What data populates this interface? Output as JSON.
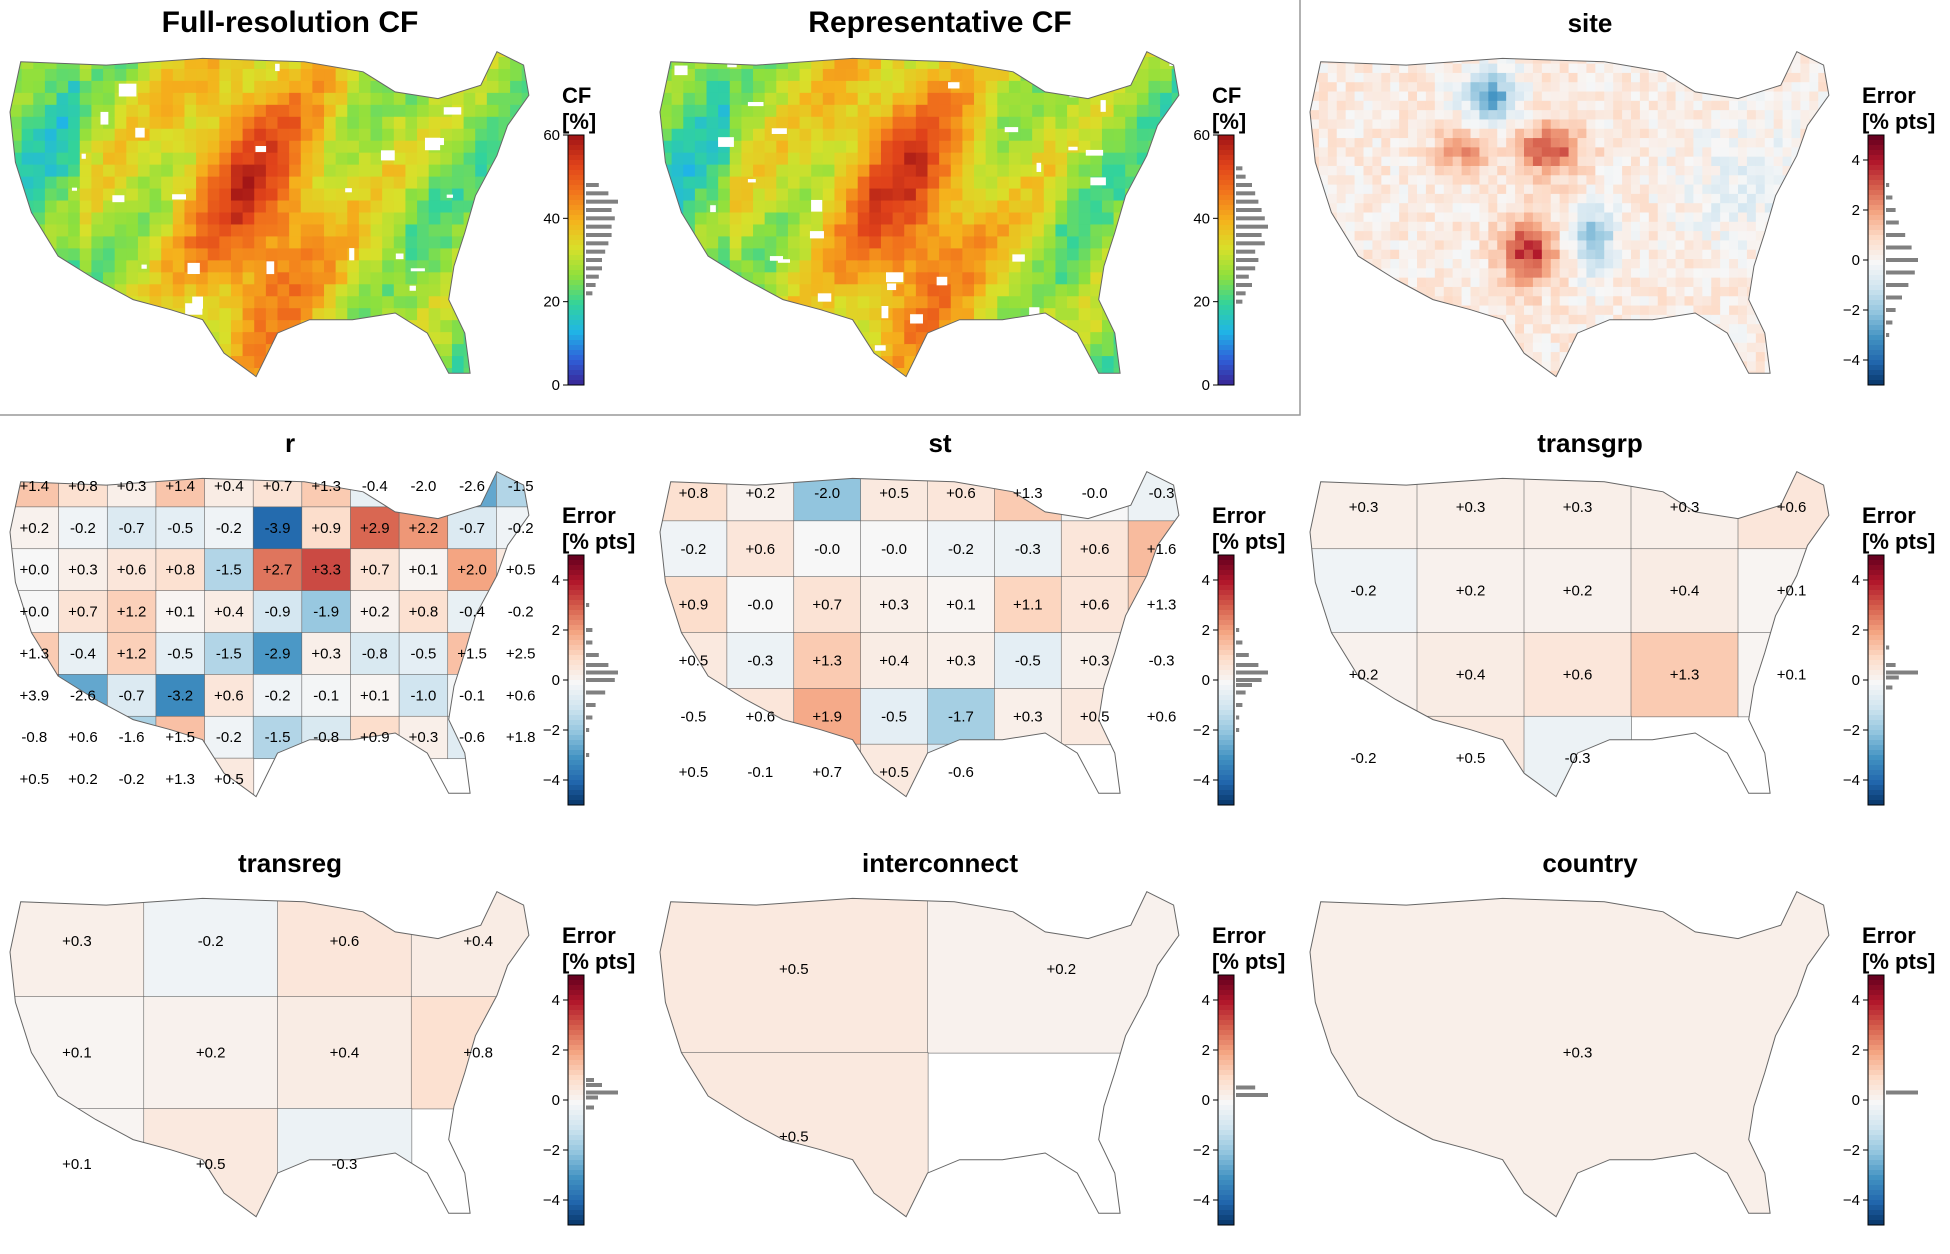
{
  "figure": {
    "cf_colors": [
      "#3a1f8e",
      "#2f5fd8",
      "#20b5e6",
      "#32d39b",
      "#8ee03d",
      "#d8e02a",
      "#f5b21c",
      "#f2761c",
      "#e0421a",
      "#a31616"
    ],
    "err_colors": [
      "#053061",
      "#2166ac",
      "#4393c3",
      "#92c5de",
      "#d1e5f0",
      "#f7f7f7",
      "#fddbc7",
      "#f4a582",
      "#d6604d",
      "#b2182b",
      "#67001f"
    ],
    "border_color": "#666666",
    "hist_color": "#808080"
  },
  "chart_data": [
    {
      "type": "heatmap",
      "title": "Full-resolution CF",
      "colorbar": {
        "title_lines": [
          "CF",
          "[%]"
        ],
        "range": [
          0,
          60
        ],
        "ticks": [
          "0",
          "20",
          "40",
          "60"
        ],
        "scheme": "cf"
      },
      "histogram": {
        "bins": [
          22,
          24,
          26,
          28,
          30,
          32,
          34,
          36,
          38,
          40,
          42,
          44,
          46,
          48
        ],
        "counts": [
          2,
          3,
          4,
          5,
          5,
          6,
          7,
          8,
          8,
          9,
          8,
          10,
          7,
          4
        ]
      }
    },
    {
      "type": "heatmap",
      "title": "Representative CF",
      "colorbar": {
        "title_lines": [
          "CF",
          "[%]"
        ],
        "range": [
          0,
          60
        ],
        "ticks": [
          "0",
          "20",
          "40",
          "60"
        ],
        "scheme": "cf"
      },
      "histogram": {
        "bins": [
          20,
          22,
          24,
          26,
          28,
          30,
          32,
          34,
          36,
          38,
          40,
          42,
          44,
          46,
          48,
          50,
          52
        ],
        "counts": [
          2,
          3,
          5,
          4,
          6,
          7,
          6,
          9,
          8,
          10,
          9,
          8,
          7,
          6,
          5,
          3,
          2
        ]
      }
    },
    {
      "type": "heatmap",
      "title": "site",
      "colorbar": {
        "title_lines": [
          "Error",
          "[% pts]"
        ],
        "range": [
          -5,
          5
        ],
        "ticks": [
          "4",
          "2",
          "0",
          "−2",
          "−4"
        ],
        "scheme": "error"
      },
      "histogram": {
        "bins": [
          -3,
          -2.5,
          -2,
          -1.5,
          -1,
          -0.5,
          0,
          0.5,
          1,
          1.5,
          2,
          2.5,
          3
        ],
        "counts": [
          1,
          2,
          3,
          5,
          7,
          9,
          10,
          8,
          6,
          4,
          3,
          2,
          1
        ]
      }
    },
    {
      "type": "heatmap",
      "title": "r",
      "colorbar": {
        "title_lines": [
          "Error",
          "[% pts]"
        ],
        "range": [
          -5,
          5
        ],
        "ticks": [
          "4",
          "2",
          "0",
          "−2",
          "−4"
        ],
        "scheme": "error"
      },
      "histogram": {
        "bins": [
          -3,
          -2,
          -1.5,
          -1,
          -0.5,
          0,
          0.3,
          0.6,
          1,
          1.5,
          2,
          3
        ],
        "counts": [
          1,
          1,
          2,
          3,
          6,
          9,
          10,
          7,
          4,
          2,
          2,
          1
        ]
      },
      "regions": [
        {
          "label": "+1.4",
          "value": 1.4
        },
        {
          "label": "+0.8",
          "value": 0.8
        },
        {
          "label": "+0.3",
          "value": 0.3
        },
        {
          "label": "+1.4",
          "value": 1.4
        },
        {
          "label": "+0.4",
          "value": 0.4
        },
        {
          "label": "+0.7",
          "value": 0.7
        },
        {
          "label": "+1.3",
          "value": 1.3
        },
        {
          "label": "-0.4",
          "value": -0.4
        },
        {
          "label": "-2.0",
          "value": -2.0
        },
        {
          "label": "-2.6",
          "value": -2.6
        },
        {
          "label": "-1.5",
          "value": -1.5
        },
        {
          "label": "+0.2",
          "value": 0.2
        },
        {
          "label": "-0.2",
          "value": -0.2
        },
        {
          "label": "-0.7",
          "value": -0.7
        },
        {
          "label": "-0.5",
          "value": -0.5
        },
        {
          "label": "-0.2",
          "value": -0.2
        },
        {
          "label": "-3.9",
          "value": -3.9
        },
        {
          "label": "+0.9",
          "value": 0.9
        },
        {
          "label": "+2.9",
          "value": 2.9
        },
        {
          "label": "+2.2",
          "value": 2.2
        },
        {
          "label": "-0.7",
          "value": -0.7
        },
        {
          "label": "-0.2",
          "value": -0.2
        },
        {
          "label": "+0.0",
          "value": 0.0
        },
        {
          "label": "+0.3",
          "value": 0.3
        },
        {
          "label": "+0.6",
          "value": 0.6
        },
        {
          "label": "+0.8",
          "value": 0.8
        },
        {
          "label": "-1.5",
          "value": -1.5
        },
        {
          "label": "+2.7",
          "value": 2.7
        },
        {
          "label": "+3.3",
          "value": 3.3
        },
        {
          "label": "+0.7",
          "value": 0.7
        },
        {
          "label": "+0.1",
          "value": 0.1
        },
        {
          "label": "+2.0",
          "value": 2.0
        },
        {
          "label": "+0.5",
          "value": 0.5
        },
        {
          "label": "+0.0",
          "value": 0.0
        },
        {
          "label": "+0.7",
          "value": 0.7
        },
        {
          "label": "+1.2",
          "value": 1.2
        },
        {
          "label": "+0.1",
          "value": 0.1
        },
        {
          "label": "+0.4",
          "value": 0.4
        },
        {
          "label": "-0.9",
          "value": -0.9
        },
        {
          "label": "-1.9",
          "value": -1.9
        },
        {
          "label": "+0.2",
          "value": 0.2
        },
        {
          "label": "+0.8",
          "value": 0.8
        },
        {
          "label": "-0.4",
          "value": -0.4
        },
        {
          "label": "-0.2",
          "value": -0.2
        },
        {
          "label": "+1.3",
          "value": 1.3
        },
        {
          "label": "-0.4",
          "value": -0.4
        },
        {
          "label": "+1.2",
          "value": 1.2
        },
        {
          "label": "-0.5",
          "value": -0.5
        },
        {
          "label": "-1.5",
          "value": -1.5
        },
        {
          "label": "-2.9",
          "value": -2.9
        },
        {
          "label": "+0.3",
          "value": 0.3
        },
        {
          "label": "-0.8",
          "value": -0.8
        },
        {
          "label": "-0.5",
          "value": -0.5
        },
        {
          "label": "+1.5",
          "value": 1.5
        },
        {
          "label": "+2.5",
          "value": 2.5
        },
        {
          "label": "+3.9",
          "value": 3.9
        },
        {
          "label": "-2.6",
          "value": -2.6
        },
        {
          "label": "-0.7",
          "value": -0.7
        },
        {
          "label": "-3.2",
          "value": -3.2
        },
        {
          "label": "+0.6",
          "value": 0.6
        },
        {
          "label": "-0.2",
          "value": -0.2
        },
        {
          "label": "-0.1",
          "value": -0.1
        },
        {
          "label": "+0.1",
          "value": 0.1
        },
        {
          "label": "-1.0",
          "value": -1.0
        },
        {
          "label": "-0.1",
          "value": -0.1
        },
        {
          "label": "+0.6",
          "value": 0.6
        },
        {
          "label": "-0.8",
          "value": -0.8
        },
        {
          "label": "+0.6",
          "value": 0.6
        },
        {
          "label": "-1.6",
          "value": -1.6
        },
        {
          "label": "+1.5",
          "value": 1.5
        },
        {
          "label": "-0.2",
          "value": -0.2
        },
        {
          "label": "-1.5",
          "value": -1.5
        },
        {
          "label": "-0.8",
          "value": -0.8
        },
        {
          "label": "+0.9",
          "value": 0.9
        },
        {
          "label": "+0.3",
          "value": 0.3
        },
        {
          "label": "-0.6",
          "value": -0.6
        },
        {
          "label": "+1.8",
          "value": 1.8
        },
        {
          "label": "+0.5",
          "value": 0.5
        },
        {
          "label": "+0.2",
          "value": 0.2
        },
        {
          "label": "-0.2",
          "value": -0.2
        },
        {
          "label": "+1.3",
          "value": 1.3
        },
        {
          "label": "+0.5",
          "value": 0.5
        }
      ]
    },
    {
      "type": "heatmap",
      "title": "st",
      "colorbar": {
        "title_lines": [
          "Error",
          "[% pts]"
        ],
        "range": [
          -5,
          5
        ],
        "ticks": [
          "4",
          "2",
          "0",
          "−2",
          "−4"
        ],
        "scheme": "error"
      },
      "histogram": {
        "bins": [
          -2,
          -1.5,
          -1,
          -0.5,
          -0.2,
          0,
          0.3,
          0.6,
          1,
          1.5,
          2
        ],
        "counts": [
          1,
          1,
          2,
          3,
          5,
          8,
          10,
          7,
          4,
          2,
          1
        ]
      },
      "regions": [
        {
          "label": "+0.8",
          "value": 0.8
        },
        {
          "label": "+0.2",
          "value": 0.2
        },
        {
          "label": "-2.0",
          "value": -2.0
        },
        {
          "label": "+0.5",
          "value": 0.5
        },
        {
          "label": "+0.6",
          "value": 0.6
        },
        {
          "label": "+1.3",
          "value": 1.3
        },
        {
          "label": "-0.0",
          "value": 0.0
        },
        {
          "label": "-0.3",
          "value": -0.3
        },
        {
          "label": "-0.2",
          "value": -0.2
        },
        {
          "label": "+0.6",
          "value": 0.6
        },
        {
          "label": "-0.0",
          "value": 0.0
        },
        {
          "label": "-0.0",
          "value": 0.0
        },
        {
          "label": "-0.2",
          "value": -0.2
        },
        {
          "label": "-0.3",
          "value": -0.3
        },
        {
          "label": "+0.6",
          "value": 0.6
        },
        {
          "label": "+1.6",
          "value": 1.6
        },
        {
          "label": "+0.9",
          "value": 0.9
        },
        {
          "label": "-0.0",
          "value": 0.0
        },
        {
          "label": "+0.7",
          "value": 0.7
        },
        {
          "label": "+0.3",
          "value": 0.3
        },
        {
          "label": "+0.1",
          "value": 0.1
        },
        {
          "label": "+1.1",
          "value": 1.1
        },
        {
          "label": "+0.6",
          "value": 0.6
        },
        {
          "label": "+1.3",
          "value": 1.3
        },
        {
          "label": "+0.5",
          "value": 0.5
        },
        {
          "label": "-0.3",
          "value": -0.3
        },
        {
          "label": "+1.3",
          "value": 1.3
        },
        {
          "label": "+0.4",
          "value": 0.4
        },
        {
          "label": "+0.3",
          "value": 0.3
        },
        {
          "label": "-0.5",
          "value": -0.5
        },
        {
          "label": "+0.3",
          "value": 0.3
        },
        {
          "label": "-0.3",
          "value": -0.3
        },
        {
          "label": "-0.5",
          "value": -0.5
        },
        {
          "label": "+0.6",
          "value": 0.6
        },
        {
          "label": "+1.9",
          "value": 1.9
        },
        {
          "label": "-0.5",
          "value": -0.5
        },
        {
          "label": "-1.7",
          "value": -1.7
        },
        {
          "label": "+0.3",
          "value": 0.3
        },
        {
          "label": "+0.5",
          "value": 0.5
        },
        {
          "label": "+0.6",
          "value": 0.6
        },
        {
          "label": "+0.5",
          "value": 0.5
        },
        {
          "label": "-0.1",
          "value": -0.1
        },
        {
          "label": "+0.7",
          "value": 0.7
        },
        {
          "label": "+0.5",
          "value": 0.5
        },
        {
          "label": "-0.6",
          "value": -0.6
        }
      ]
    },
    {
      "type": "heatmap",
      "title": "transgrp",
      "colorbar": {
        "title_lines": [
          "Error",
          "[% pts]"
        ],
        "range": [
          -5,
          5
        ],
        "ticks": [
          "4",
          "2",
          "0",
          "−2",
          "−4"
        ],
        "scheme": "error"
      },
      "histogram": {
        "bins": [
          -0.3,
          0.1,
          0.3,
          0.6,
          1.3
        ],
        "counts": [
          2,
          4,
          10,
          3,
          1
        ]
      },
      "regions": [
        {
          "label": "+0.3",
          "value": 0.3
        },
        {
          "label": "+0.3",
          "value": 0.3
        },
        {
          "label": "+0.3",
          "value": 0.3
        },
        {
          "label": "+0.3",
          "value": 0.3
        },
        {
          "label": "+0.6",
          "value": 0.6
        },
        {
          "label": "-0.2",
          "value": -0.2
        },
        {
          "label": "+0.2",
          "value": 0.2
        },
        {
          "label": "+0.2",
          "value": 0.2
        },
        {
          "label": "+0.4",
          "value": 0.4
        },
        {
          "label": "+0.1",
          "value": 0.1
        },
        {
          "label": "+0.2",
          "value": 0.2
        },
        {
          "label": "+0.4",
          "value": 0.4
        },
        {
          "label": "+0.6",
          "value": 0.6
        },
        {
          "label": "+1.3",
          "value": 1.3
        },
        {
          "label": "+0.1",
          "value": 0.1
        },
        {
          "label": "-0.2",
          "value": -0.2
        },
        {
          "label": "+0.5",
          "value": 0.5
        },
        {
          "label": "-0.3",
          "value": -0.3
        }
      ]
    },
    {
      "type": "heatmap",
      "title": "transreg",
      "colorbar": {
        "title_lines": [
          "Error",
          "[% pts]"
        ],
        "range": [
          -5,
          5
        ],
        "ticks": [
          "4",
          "2",
          "0",
          "−2",
          "−4"
        ],
        "scheme": "error"
      },
      "histogram": {
        "bins": [
          -0.3,
          0.1,
          0.3,
          0.6,
          0.8
        ],
        "counts": [
          2,
          3,
          8,
          4,
          2
        ]
      },
      "regions": [
        {
          "label": "+0.3",
          "value": 0.3
        },
        {
          "label": "-0.2",
          "value": -0.2
        },
        {
          "label": "+0.6",
          "value": 0.6
        },
        {
          "label": "+0.4",
          "value": 0.4
        },
        {
          "label": "+0.1",
          "value": 0.1
        },
        {
          "label": "+0.2",
          "value": 0.2
        },
        {
          "label": "+0.4",
          "value": 0.4
        },
        {
          "label": "+0.8",
          "value": 0.8
        },
        {
          "label": "+0.1",
          "value": 0.1
        },
        {
          "label": "+0.5",
          "value": 0.5
        },
        {
          "label": "-0.3",
          "value": -0.3
        }
      ]
    },
    {
      "type": "heatmap",
      "title": "interconnect",
      "colorbar": {
        "title_lines": [
          "Error",
          "[% pts]"
        ],
        "range": [
          -5,
          5
        ],
        "ticks": [
          "4",
          "2",
          "0",
          "−2",
          "−4"
        ],
        "scheme": "error"
      },
      "histogram": {
        "bins": [
          0.2,
          0.5
        ],
        "counts": [
          10,
          6
        ]
      },
      "regions": [
        {
          "label": "+0.5",
          "value": 0.5
        },
        {
          "label": "+0.2",
          "value": 0.2
        },
        {
          "label": "+0.5",
          "value": 0.5
        }
      ]
    },
    {
      "type": "heatmap",
      "title": "country",
      "colorbar": {
        "title_lines": [
          "Error",
          "[% pts]"
        ],
        "range": [
          -5,
          5
        ],
        "ticks": [
          "4",
          "2",
          "0",
          "−2",
          "−4"
        ],
        "scheme": "error"
      },
      "histogram": {
        "bins": [
          0.3
        ],
        "counts": [
          10
        ]
      },
      "regions": [
        {
          "label": "+0.3",
          "value": 0.3
        }
      ]
    }
  ]
}
